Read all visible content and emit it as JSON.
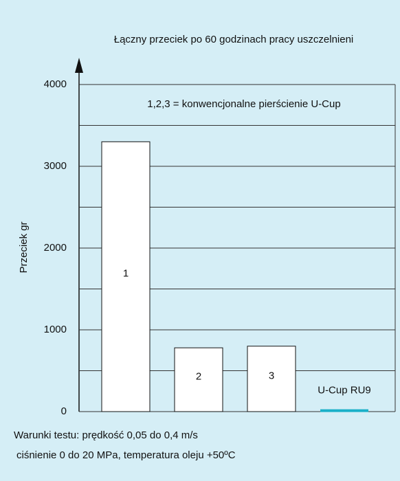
{
  "chart_data": {
    "type": "bar",
    "title": "Łączny przeciek po 60 godzinach pracy uszczelnieni",
    "annotation": "1,2,3 = konwencjonalne pierścienie U-Cup",
    "y_label": "Przeciek gr",
    "notes": [
      "Warunki testu: prędkość 0,05 do 0,4 m/s",
      "ciśnienie 0 do 20 MPa, temperatura oleju +50ºC"
    ],
    "categories": [
      "1",
      "2",
      "3",
      "U-Cup RU9"
    ],
    "values": [
      3300,
      780,
      800,
      20
    ],
    "colors": [
      "#ffffff",
      "#ffffff",
      "#ffffff",
      "#1ab0c8"
    ],
    "ylim": [
      0,
      4000
    ],
    "yticks": [
      0,
      1000,
      2000,
      3000,
      4000
    ],
    "minor_yticks": [
      500,
      1500,
      2500,
      3500
    ],
    "grid": true
  }
}
